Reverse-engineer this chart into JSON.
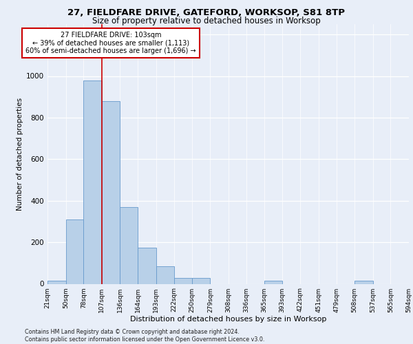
{
  "title_line1": "27, FIELDFARE DRIVE, GATEFORD, WORKSOP, S81 8TP",
  "title_line2": "Size of property relative to detached houses in Worksop",
  "xlabel": "Distribution of detached houses by size in Worksop",
  "ylabel": "Number of detached properties",
  "footnote": "Contains HM Land Registry data © Crown copyright and database right 2024.\nContains public sector information licensed under the Open Government Licence v3.0.",
  "annotation_line1": "27 FIELDFARE DRIVE: 103sqm",
  "annotation_line2": "← 39% of detached houses are smaller (1,113)",
  "annotation_line3": "60% of semi-detached houses are larger (1,696) →",
  "bar_color": "#b8d0e8",
  "bar_edge_color": "#6699cc",
  "reference_line_color": "#cc0000",
  "bin_edges": [
    21,
    50,
    78,
    107,
    136,
    164,
    193,
    222,
    250,
    279,
    308,
    336,
    365,
    393,
    422,
    451,
    479,
    508,
    537,
    565,
    594
  ],
  "bin_labels": [
    "21sqm",
    "50sqm",
    "78sqm",
    "107sqm",
    "136sqm",
    "164sqm",
    "193sqm",
    "222sqm",
    "250sqm",
    "279sqm",
    "308sqm",
    "336sqm",
    "365sqm",
    "393sqm",
    "422sqm",
    "451sqm",
    "479sqm",
    "508sqm",
    "537sqm",
    "565sqm",
    "594sqm"
  ],
  "bar_heights": [
    15,
    310,
    980,
    880,
    370,
    175,
    85,
    27,
    27,
    0,
    0,
    0,
    15,
    0,
    0,
    0,
    0,
    15,
    0,
    0
  ],
  "ylim": [
    0,
    1250
  ],
  "yticks": [
    0,
    200,
    400,
    600,
    800,
    1000,
    1200
  ],
  "background_color": "#e8eef8",
  "plot_bg_color": "#e8eef8",
  "grid_color": "#ffffff"
}
